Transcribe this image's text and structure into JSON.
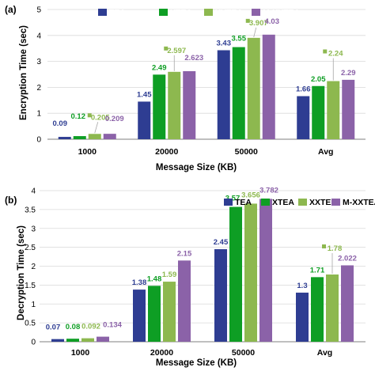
{
  "chart_data": [
    {
      "type": "bar",
      "panel": "(a)",
      "title": "",
      "xlabel": "Message Size (KB)",
      "ylabel": "Encryption Time (sec)",
      "ylim": [
        0,
        5
      ],
      "yticks": [
        "0",
        "1",
        "2",
        "3",
        "4",
        "5"
      ],
      "categories": [
        "1000",
        "20000",
        "50000",
        "Avg"
      ],
      "legend_position": "top",
      "grid": "horizontal",
      "series": [
        {
          "name": "TEA",
          "color": "#2E3D92",
          "values": [
            0.09,
            1.45,
            3.43,
            1.66
          ],
          "labels": [
            "0.09",
            "1.45",
            "3.43",
            "1.66"
          ]
        },
        {
          "name": "XTEA",
          "color": "#0E9E24",
          "values": [
            0.12,
            2.49,
            3.55,
            2.05
          ],
          "labels": [
            "0.12",
            "2.49",
            "3.55",
            "2.05"
          ]
        },
        {
          "name": "XXTEA",
          "color": "#8DB84F",
          "values": [
            0.205,
            2.597,
            3.907,
            2.24
          ],
          "labels": [
            "0.205",
            "2.597",
            "3.907",
            "2.24"
          ]
        },
        {
          "name": "M-XXTEA",
          "color": "#8B62A8",
          "values": [
            0.209,
            2.623,
            4.03,
            2.29
          ],
          "labels": [
            "0.209",
            "2.623",
            "4.03",
            "2.29"
          ]
        }
      ]
    },
    {
      "type": "bar",
      "panel": "(b)",
      "title": "",
      "xlabel": "Message Size (KB)",
      "ylabel": "Decryption Time (sec)",
      "ylim": [
        0,
        4
      ],
      "yticks": [
        "0",
        "0.5",
        "1",
        "1.5",
        "2",
        "2.5",
        "3",
        "3.5",
        "4"
      ],
      "categories": [
        "1000",
        "20000",
        "50000",
        "Avg"
      ],
      "legend_position": "top-right",
      "grid": "horizontal",
      "series": [
        {
          "name": "TEA",
          "color": "#2E3D92",
          "values": [
            0.07,
            1.38,
            2.45,
            1.3
          ],
          "labels": [
            "0.07",
            "1.38",
            "2.45",
            "1.3"
          ]
        },
        {
          "name": "XTEA",
          "color": "#0E9E24",
          "values": [
            0.08,
            1.48,
            3.57,
            1.71
          ],
          "labels": [
            "0.08",
            "1.48",
            "3.57",
            "1.71"
          ]
        },
        {
          "name": "XXTEA",
          "color": "#8DB84F",
          "values": [
            0.092,
            1.59,
            3.656,
            1.78
          ],
          "labels": [
            "0.092",
            "1.59",
            "3.656",
            "1.78"
          ]
        },
        {
          "name": "M-XXTEA",
          "color": "#8B62A8",
          "values": [
            0.134,
            2.15,
            3.782,
            2.022
          ],
          "labels": [
            "0.134",
            "2.15",
            "3.782",
            "2.022"
          ]
        }
      ]
    }
  ]
}
